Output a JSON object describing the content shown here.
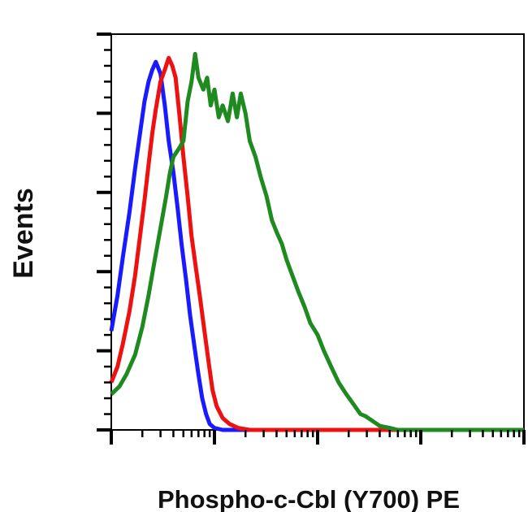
{
  "chart_data": {
    "type": "line",
    "title": "",
    "xlabel": "Phospho-c-Cbl (Y700) PE",
    "ylabel": "Events",
    "x_scale": "log",
    "xlim": [
      1,
      10000
    ],
    "ylim": [
      0,
      100
    ],
    "x_major_ticks": [
      1,
      10,
      100,
      1000,
      10000
    ],
    "y_major_ticks": [
      0,
      20,
      40,
      60,
      80,
      100
    ],
    "grid": false,
    "legend": "none",
    "series": [
      {
        "color": "#1a1aff",
        "points": [
          [
            1,
            25
          ],
          [
            1.15,
            34
          ],
          [
            1.3,
            44
          ],
          [
            1.5,
            55
          ],
          [
            1.7,
            66
          ],
          [
            1.9,
            75
          ],
          [
            2.1,
            83
          ],
          [
            2.3,
            88
          ],
          [
            2.5,
            91
          ],
          [
            2.7,
            93
          ],
          [
            3.0,
            90
          ],
          [
            3.3,
            82
          ],
          [
            3.6,
            73
          ],
          [
            4.0,
            65
          ],
          [
            4.4,
            56
          ],
          [
            4.8,
            47
          ],
          [
            5.3,
            38
          ],
          [
            5.8,
            29
          ],
          [
            6.4,
            21
          ],
          [
            7.0,
            14
          ],
          [
            7.6,
            8
          ],
          [
            8.3,
            4
          ],
          [
            9.0,
            1.5
          ],
          [
            10,
            0.5
          ],
          [
            12,
            0
          ],
          [
            10000,
            0
          ]
        ]
      },
      {
        "color": "#ee1111",
        "points": [
          [
            1,
            12
          ],
          [
            1.15,
            16
          ],
          [
            1.3,
            22
          ],
          [
            1.5,
            30
          ],
          [
            1.7,
            39
          ],
          [
            1.9,
            49
          ],
          [
            2.1,
            58
          ],
          [
            2.3,
            67
          ],
          [
            2.5,
            75
          ],
          [
            2.7,
            81
          ],
          [
            3.0,
            88
          ],
          [
            3.3,
            91
          ],
          [
            3.6,
            94
          ],
          [
            3.9,
            92
          ],
          [
            4.2,
            89
          ],
          [
            4.6,
            79
          ],
          [
            5.0,
            69
          ],
          [
            5.5,
            59
          ],
          [
            6.0,
            49
          ],
          [
            6.6,
            41
          ],
          [
            7.2,
            34
          ],
          [
            8.0,
            25
          ],
          [
            8.8,
            17
          ],
          [
            9.6,
            10
          ],
          [
            10.5,
            6
          ],
          [
            12,
            3
          ],
          [
            14,
            1.5
          ],
          [
            17,
            0.5
          ],
          [
            22,
            0
          ],
          [
            10000,
            0
          ]
        ]
      },
      {
        "color": "#1f8a1f",
        "points": [
          [
            1,
            9
          ],
          [
            1.2,
            11
          ],
          [
            1.4,
            14
          ],
          [
            1.7,
            19
          ],
          [
            2.0,
            26
          ],
          [
            2.3,
            34
          ],
          [
            2.6,
            42
          ],
          [
            3.0,
            51
          ],
          [
            3.4,
            59
          ],
          [
            3.7,
            65
          ],
          [
            4.0,
            69
          ],
          [
            4.5,
            71
          ],
          [
            5.0,
            73
          ],
          [
            5.5,
            83
          ],
          [
            6.0,
            88
          ],
          [
            6.5,
            95
          ],
          [
            7.0,
            89
          ],
          [
            7.8,
            86
          ],
          [
            8.5,
            89
          ],
          [
            9.2,
            82
          ],
          [
            10.0,
            86
          ],
          [
            11.0,
            79
          ],
          [
            12.0,
            82
          ],
          [
            13.5,
            78
          ],
          [
            15,
            85
          ],
          [
            16.5,
            79
          ],
          [
            18,
            85
          ],
          [
            20,
            80
          ],
          [
            22,
            73
          ],
          [
            25,
            69
          ],
          [
            28,
            64
          ],
          [
            32,
            59
          ],
          [
            36,
            53
          ],
          [
            40,
            50
          ],
          [
            45,
            47
          ],
          [
            50,
            43
          ],
          [
            57,
            39
          ],
          [
            65,
            35
          ],
          [
            75,
            31
          ],
          [
            85,
            27
          ],
          [
            100,
            24
          ],
          [
            115,
            20
          ],
          [
            135,
            16
          ],
          [
            160,
            12
          ],
          [
            190,
            9
          ],
          [
            230,
            6
          ],
          [
            260,
            4
          ],
          [
            290,
            3.5
          ],
          [
            330,
            2.5
          ],
          [
            400,
            1
          ],
          [
            500,
            0.5
          ],
          [
            600,
            0
          ],
          [
            10000,
            0
          ]
        ]
      }
    ]
  }
}
